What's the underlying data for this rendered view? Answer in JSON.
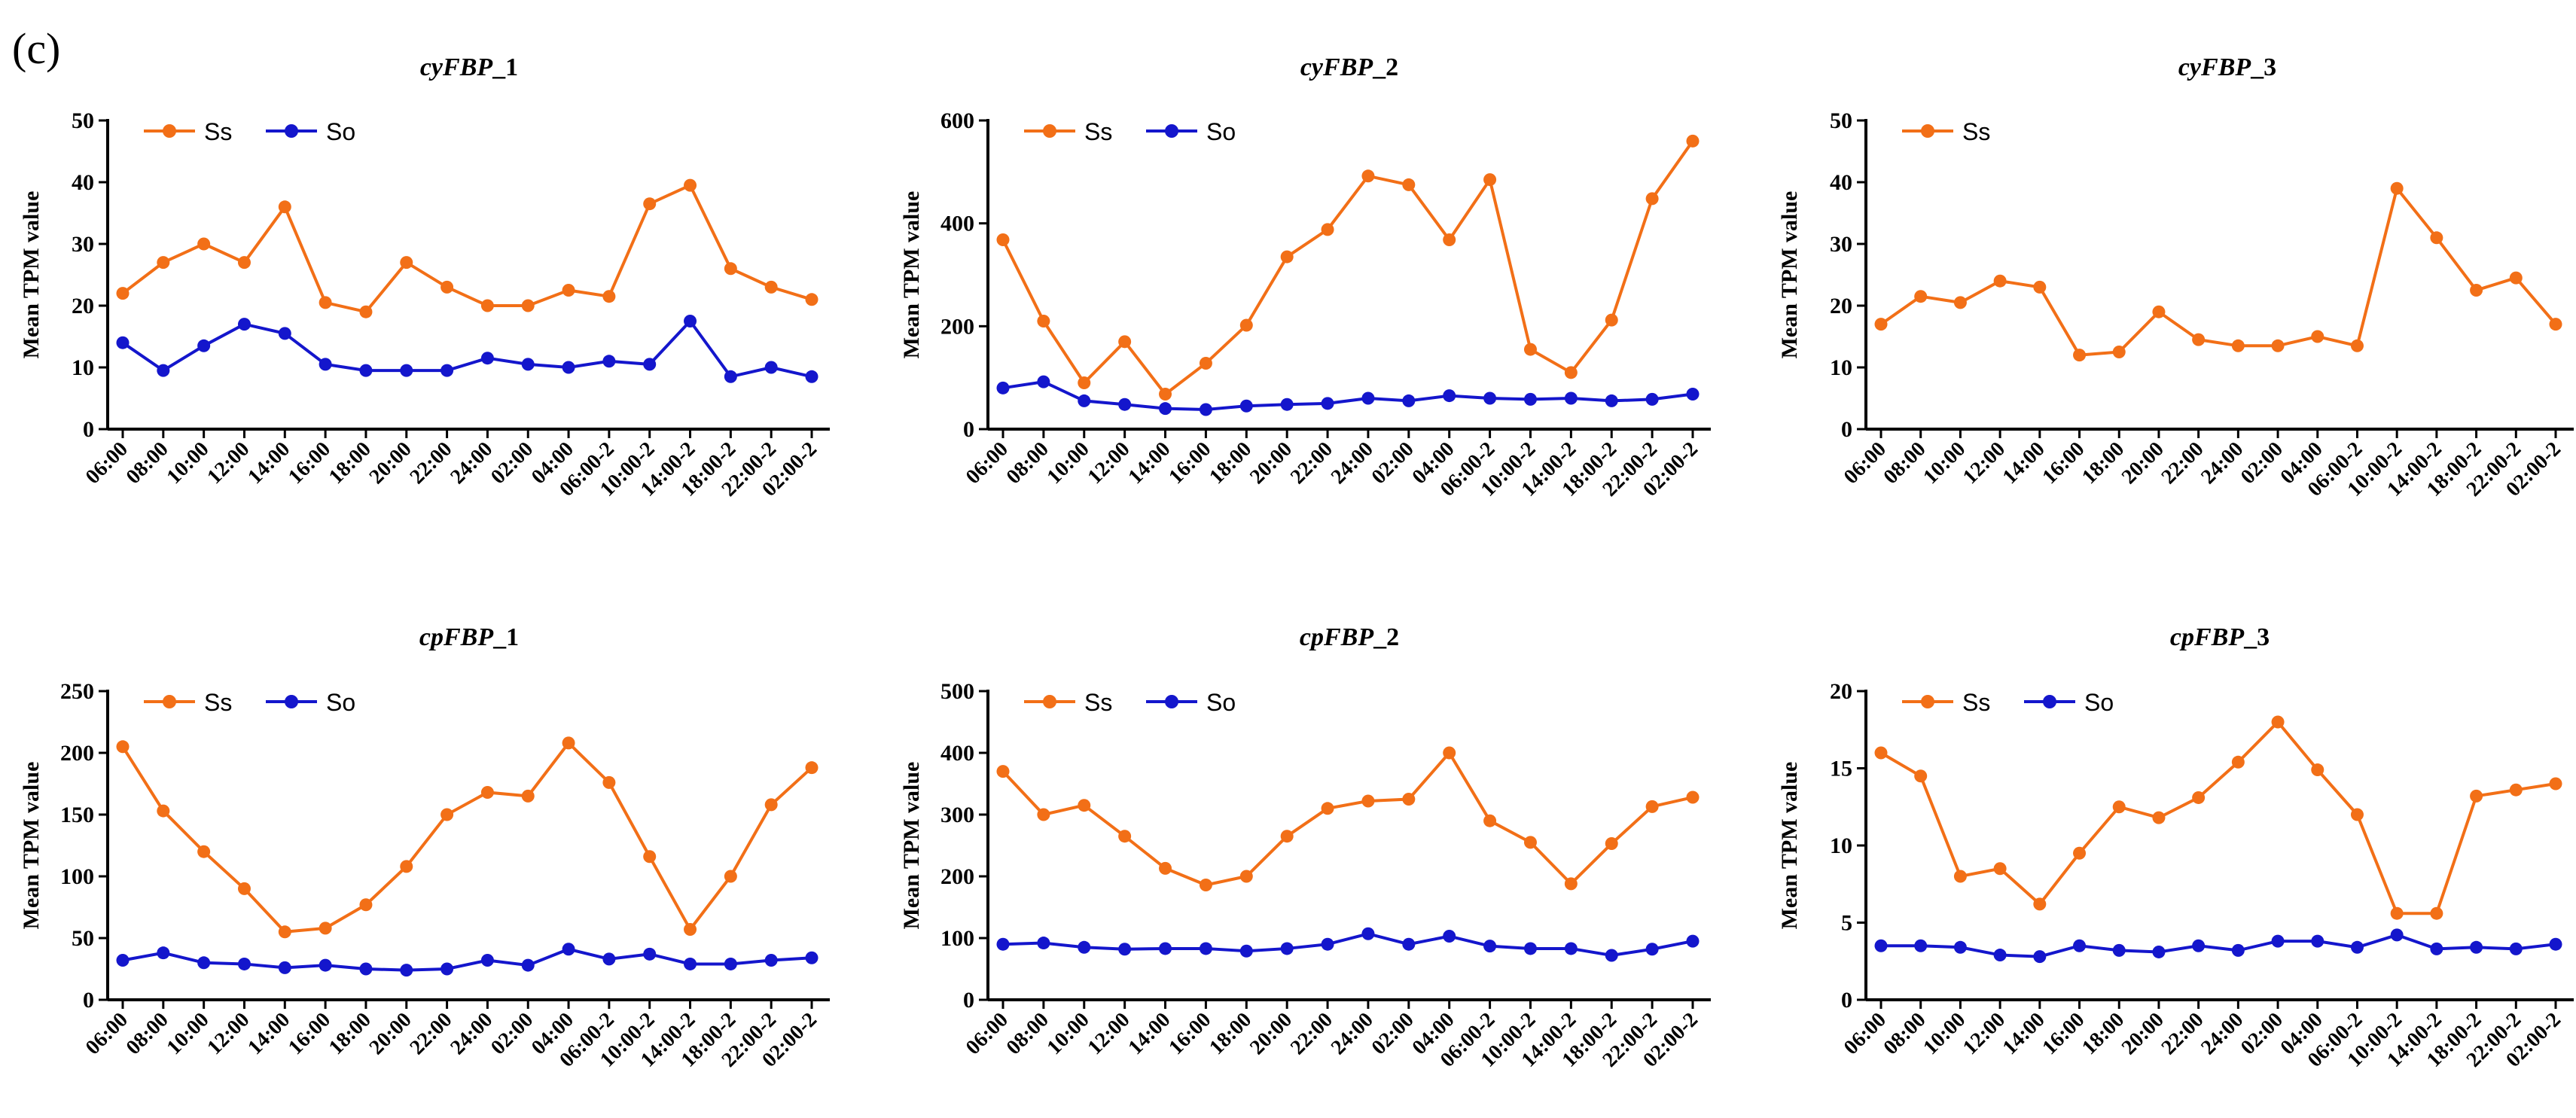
{
  "panel_label": "(c)",
  "colors": {
    "Ss": "#F26F17",
    "So": "#1416CC"
  },
  "chart_data": [
    {
      "type": "line",
      "title_main": "cyFBP",
      "title_suffix": "_1",
      "ylabel": "Mean TPM value",
      "ylim": [
        0,
        50
      ],
      "yticks": [
        0,
        10,
        20,
        30,
        40,
        50
      ],
      "categories": [
        "06:00",
        "08:00",
        "10:00",
        "12:00",
        "14:00",
        "16:00",
        "18:00",
        "20:00",
        "22:00",
        "24:00",
        "02:00",
        "04:00",
        "06:00-2",
        "10:00-2",
        "14:00-2",
        "18:00-2",
        "22:00-2",
        "02:00-2"
      ],
      "series": [
        {
          "name": "Ss",
          "values": [
            22,
            27,
            30,
            27,
            36,
            20.5,
            19,
            27,
            23,
            20,
            20,
            22.5,
            21.5,
            36.5,
            39.5,
            26,
            23,
            21
          ]
        },
        {
          "name": "So",
          "values": [
            14,
            9.5,
            13.5,
            17,
            15.5,
            10.5,
            9.5,
            9.5,
            9.5,
            11.5,
            10.5,
            10,
            11,
            10.5,
            17.5,
            8.5,
            10,
            8.5
          ]
        }
      ]
    },
    {
      "type": "line",
      "title_main": "cyFBP",
      "title_suffix": "_2",
      "ylabel": "Mean TPM value",
      "ylim": [
        0,
        600
      ],
      "yticks": [
        0,
        200,
        400,
        600
      ],
      "categories": [
        "06:00",
        "08:00",
        "10:00",
        "12:00",
        "14:00",
        "16:00",
        "18:00",
        "20:00",
        "22:00",
        "24:00",
        "02:00",
        "04:00",
        "06:00-2",
        "10:00-2",
        "14:00-2",
        "18:00-2",
        "22:00-2",
        "02:00-2"
      ],
      "series": [
        {
          "name": "Ss",
          "values": [
            368,
            210,
            90,
            170,
            68,
            128,
            202,
            335,
            388,
            492,
            475,
            368,
            485,
            155,
            110,
            212,
            448,
            560
          ]
        },
        {
          "name": "So",
          "values": [
            80,
            92,
            55,
            48,
            40,
            38,
            45,
            48,
            50,
            60,
            55,
            65,
            60,
            58,
            60,
            55,
            58,
            68
          ]
        }
      ]
    },
    {
      "type": "line",
      "title_main": "cyFBP",
      "title_suffix": "_3",
      "ylabel": "Mean TPM value",
      "ylim": [
        0,
        50
      ],
      "yticks": [
        0,
        10,
        20,
        30,
        40,
        50
      ],
      "categories": [
        "06:00",
        "08:00",
        "10:00",
        "12:00",
        "14:00",
        "16:00",
        "18:00",
        "20:00",
        "22:00",
        "24:00",
        "02:00",
        "04:00",
        "06:00-2",
        "10:00-2",
        "14:00-2",
        "18:00-2",
        "22:00-2",
        "02:00-2"
      ],
      "series": [
        {
          "name": "Ss",
          "values": [
            17,
            21.5,
            20.5,
            24,
            23,
            12,
            12.5,
            19,
            14.5,
            13.5,
            13.5,
            15,
            13.5,
            39,
            31,
            22.5,
            24.5,
            17
          ]
        }
      ]
    },
    {
      "type": "line",
      "title_main": "cpFBP",
      "title_suffix": "_1",
      "ylabel": "Mean TPM value",
      "ylim": [
        0,
        250
      ],
      "yticks": [
        0,
        50,
        100,
        150,
        200,
        250
      ],
      "categories": [
        "06:00",
        "08:00",
        "10:00",
        "12:00",
        "14:00",
        "16:00",
        "18:00",
        "20:00",
        "22:00",
        "24:00",
        "02:00",
        "04:00",
        "06:00-2",
        "10:00-2",
        "14:00-2",
        "18:00-2",
        "22:00-2",
        "02:00-2"
      ],
      "series": [
        {
          "name": "Ss",
          "values": [
            205,
            153,
            120,
            90,
            55,
            58,
            77,
            108,
            150,
            168,
            165,
            208,
            176,
            116,
            57,
            100,
            158,
            188
          ]
        },
        {
          "name": "So",
          "values": [
            32,
            38,
            30,
            29,
            26,
            28,
            25,
            24,
            25,
            32,
            28,
            41,
            33,
            37,
            29,
            29,
            32,
            34
          ]
        }
      ]
    },
    {
      "type": "line",
      "title_main": "cpFBP",
      "title_suffix": "_2",
      "ylabel": "Mean TPM value",
      "ylim": [
        0,
        500
      ],
      "yticks": [
        0,
        100,
        200,
        300,
        400,
        500
      ],
      "categories": [
        "06:00",
        "08:00",
        "10:00",
        "12:00",
        "14:00",
        "16:00",
        "18:00",
        "20:00",
        "22:00",
        "24:00",
        "02:00",
        "04:00",
        "06:00-2",
        "10:00-2",
        "14:00-2",
        "18:00-2",
        "22:00-2",
        "02:00-2"
      ],
      "series": [
        {
          "name": "Ss",
          "values": [
            370,
            300,
            315,
            265,
            213,
            186,
            200,
            265,
            310,
            322,
            325,
            400,
            290,
            255,
            188,
            253,
            313,
            328
          ]
        },
        {
          "name": "So",
          "values": [
            90,
            92,
            85,
            82,
            83,
            83,
            79,
            83,
            90,
            107,
            90,
            103,
            87,
            83,
            83,
            72,
            82,
            95
          ]
        }
      ]
    },
    {
      "type": "line",
      "title_main": "cpFBP",
      "title_suffix": "_3",
      "ylabel": "Mean TPM value",
      "ylim": [
        0,
        20
      ],
      "yticks": [
        0,
        5,
        10,
        15,
        20
      ],
      "categories": [
        "06:00",
        "08:00",
        "10:00",
        "12:00",
        "14:00",
        "16:00",
        "18:00",
        "20:00",
        "22:00",
        "24:00",
        "02:00",
        "04:00",
        "06:00-2",
        "10:00-2",
        "14:00-2",
        "18:00-2",
        "22:00-2",
        "02:00-2"
      ],
      "series": [
        {
          "name": "Ss",
          "values": [
            16,
            14.5,
            8,
            8.5,
            6.2,
            9.5,
            12.5,
            11.8,
            13.1,
            15.4,
            18,
            14.9,
            12,
            5.6,
            5.6,
            13.2,
            13.6,
            14
          ]
        },
        {
          "name": "So",
          "values": [
            3.5,
            3.5,
            3.4,
            2.9,
            2.8,
            3.5,
            3.2,
            3.1,
            3.5,
            3.2,
            3.8,
            3.8,
            3.4,
            4.2,
            3.3,
            3.4,
            3.3,
            3.6
          ]
        }
      ]
    }
  ]
}
